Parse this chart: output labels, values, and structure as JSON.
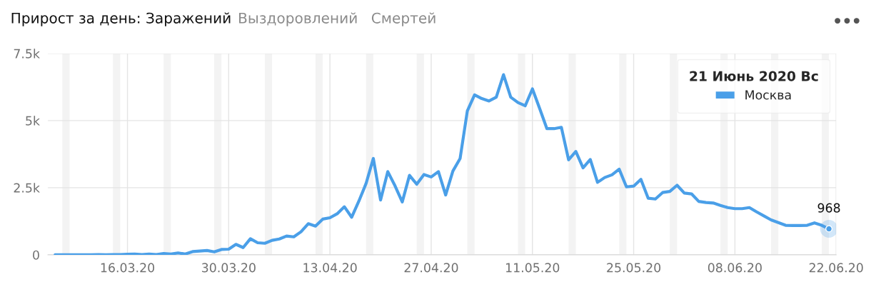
{
  "chart_data": {
    "type": "line",
    "title": "Прирост за день: Заражений",
    "annotations": [
      "Выздоровлений",
      "Смертей",
      {
        "text": "968",
        "x": "2020-06-21",
        "y": 968
      }
    ],
    "legend_title": "21 Июнь 2020 Вс",
    "legend": "top right",
    "x": [
      "2020-03-06",
      "2020-03-07",
      "2020-03-08",
      "2020-03-09",
      "2020-03-10",
      "2020-03-11",
      "2020-03-12",
      "2020-03-13",
      "2020-03-14",
      "2020-03-15",
      "2020-03-16",
      "2020-03-17",
      "2020-03-18",
      "2020-03-19",
      "2020-03-20",
      "2020-03-21",
      "2020-03-22",
      "2020-03-23",
      "2020-03-24",
      "2020-03-25",
      "2020-03-26",
      "2020-03-27",
      "2020-03-28",
      "2020-03-29",
      "2020-03-30",
      "2020-03-31",
      "2020-04-01",
      "2020-04-02",
      "2020-04-03",
      "2020-04-04",
      "2020-04-05",
      "2020-04-06",
      "2020-04-07",
      "2020-04-08",
      "2020-04-09",
      "2020-04-10",
      "2020-04-11",
      "2020-04-12",
      "2020-04-13",
      "2020-04-14",
      "2020-04-15",
      "2020-04-16",
      "2020-04-17",
      "2020-04-18",
      "2020-04-19",
      "2020-04-20",
      "2020-04-21",
      "2020-04-22",
      "2020-04-23",
      "2020-04-24",
      "2020-04-25",
      "2020-04-26",
      "2020-04-27",
      "2020-04-28",
      "2020-04-29",
      "2020-04-30",
      "2020-05-01",
      "2020-05-02",
      "2020-05-03",
      "2020-05-04",
      "2020-05-05",
      "2020-05-06",
      "2020-05-07",
      "2020-05-08",
      "2020-05-09",
      "2020-05-10",
      "2020-05-11",
      "2020-05-12",
      "2020-05-13",
      "2020-05-14",
      "2020-05-15",
      "2020-05-16",
      "2020-05-17",
      "2020-05-18",
      "2020-05-19",
      "2020-05-20",
      "2020-05-21",
      "2020-05-22",
      "2020-05-23",
      "2020-05-24",
      "2020-05-25",
      "2020-05-26",
      "2020-05-27",
      "2020-05-28",
      "2020-05-29",
      "2020-05-30",
      "2020-05-31",
      "2020-06-01",
      "2020-06-02",
      "2020-06-03",
      "2020-06-04",
      "2020-06-05",
      "2020-06-06",
      "2020-06-07",
      "2020-06-08",
      "2020-06-09",
      "2020-06-10",
      "2020-06-11",
      "2020-06-12",
      "2020-06-13",
      "2020-06-14",
      "2020-06-15",
      "2020-06-16",
      "2020-06-17",
      "2020-06-18",
      "2020-06-19",
      "2020-06-20",
      "2020-06-21"
    ],
    "series": [
      {
        "name": "Москва",
        "color": "#4a9fe8",
        "values": [
          0,
          0,
          0,
          0,
          0,
          0,
          10,
          0,
          10,
          10,
          20,
          30,
          10,
          30,
          10,
          50,
          30,
          70,
          30,
          120,
          140,
          160,
          110,
          200,
          210,
          390,
          270,
          600,
          450,
          430,
          540,
          590,
          700,
          670,
          860,
          1160,
          1070,
          1330,
          1380,
          1530,
          1790,
          1400,
          2000,
          2660,
          3590,
          2040,
          3100,
          2570,
          1970,
          2960,
          2630,
          2990,
          2900,
          3100,
          2230,
          3120,
          3590,
          5360,
          5960,
          5820,
          5730,
          5870,
          6710,
          5870,
          5670,
          5550,
          6180,
          5450,
          4700,
          4700,
          4750,
          3540,
          3850,
          3240,
          3550,
          2700,
          2880,
          2980,
          3190,
          2530,
          2560,
          2810,
          2110,
          2080,
          2320,
          2360,
          2590,
          2300,
          2270,
          1990,
          1950,
          1930,
          1840,
          1760,
          1720,
          1720,
          1760,
          1600,
          1450,
          1300,
          1200,
          1100,
          1090,
          1090,
          1100,
          1190,
          1100,
          968
        ]
      }
    ],
    "xlim": [
      "2020-03-05",
      "2020-06-22"
    ],
    "xticks": [
      {
        "value": "2020-03-16",
        "label": "16.03.20"
      },
      {
        "value": "2020-03-30",
        "label": "30.03.20"
      },
      {
        "value": "2020-04-13",
        "label": "13.04.20"
      },
      {
        "value": "2020-04-27",
        "label": "27.04.20"
      },
      {
        "value": "2020-05-11",
        "label": "11.05.20"
      },
      {
        "value": "2020-05-25",
        "label": "25.05.20"
      },
      {
        "value": "2020-06-08",
        "label": "08.06.20"
      },
      {
        "value": "2020-06-22",
        "label": "22.06.20"
      }
    ],
    "ylim": [
      0,
      7500
    ],
    "yticks": [
      0,
      {
        "value": 2500,
        "label": "2.5k"
      },
      {
        "value": 5000,
        "label": "5k"
      },
      {
        "value": 7500,
        "label": "7.5k"
      }
    ],
    "grid": true,
    "bands": [
      {
        "axis": "x",
        "from": "2020-03-07",
        "to": "2020-03-08",
        "color": "#f3f3f3"
      },
      {
        "axis": "x",
        "from": "2020-03-14",
        "to": "2020-03-15",
        "color": "#f3f3f3"
      },
      {
        "axis": "x",
        "from": "2020-03-21",
        "to": "2020-03-22",
        "color": "#f3f3f3"
      },
      {
        "axis": "x",
        "from": "2020-03-28",
        "to": "2020-03-29",
        "color": "#f3f3f3"
      },
      {
        "axis": "x",
        "from": "2020-04-04",
        "to": "2020-04-05",
        "color": "#f3f3f3"
      },
      {
        "axis": "x",
        "from": "2020-04-11",
        "to": "2020-04-12",
        "color": "#f3f3f3"
      },
      {
        "axis": "x",
        "from": "2020-04-18",
        "to": "2020-04-19",
        "color": "#f3f3f3"
      },
      {
        "axis": "x",
        "from": "2020-04-25",
        "to": "2020-04-26",
        "color": "#f3f3f3"
      },
      {
        "axis": "x",
        "from": "2020-05-02",
        "to": "2020-05-03",
        "color": "#f3f3f3"
      },
      {
        "axis": "x",
        "from": "2020-05-09",
        "to": "2020-05-10",
        "color": "#f3f3f3"
      },
      {
        "axis": "x",
        "from": "2020-05-16",
        "to": "2020-05-17",
        "color": "#f3f3f3"
      },
      {
        "axis": "x",
        "from": "2020-05-23",
        "to": "2020-05-24",
        "color": "#f3f3f3"
      },
      {
        "axis": "x",
        "from": "2020-05-30",
        "to": "2020-05-31",
        "color": "#f3f3f3"
      },
      {
        "axis": "x",
        "from": "2020-06-06",
        "to": "2020-06-07",
        "color": "#f3f3f3"
      },
      {
        "axis": "x",
        "from": "2020-06-13",
        "to": "2020-06-14",
        "color": "#f3f3f3"
      },
      {
        "axis": "x",
        "from": "2020-06-20",
        "to": "2020-06-21",
        "color": "#f3f3f3"
      }
    ]
  }
}
